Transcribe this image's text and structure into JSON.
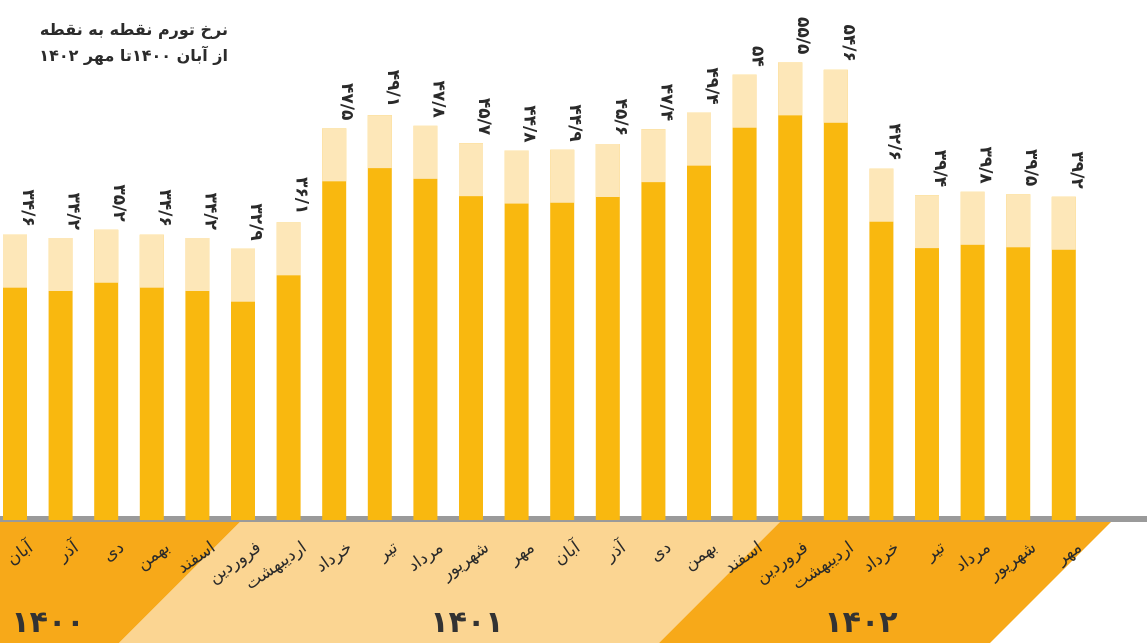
{
  "title_line1": "نرخ تورم نقطه به نقطه",
  "title_line2": "از آبان ۱۴۰۰تا مهر ۱۴۰۲",
  "colors": {
    "bar_dark": "#f9b80f",
    "bar_light": "#fde7b8",
    "band_1400": "#f7a919",
    "band_1401": "#fbd592",
    "band_1402": "#f7a919",
    "rule": "#9a9a9a"
  },
  "chart_data": {
    "type": "bar",
    "categories": [
      "آبان",
      "آذر",
      "دی",
      "بهمن",
      "اسفند",
      "فروردین",
      "اردیبهشت",
      "خرداد",
      "تیر",
      "مرداد",
      "شهریور",
      "مهر",
      "آبان",
      "آذر",
      "دی",
      "بهمن",
      "اسفند",
      "فروردین",
      "اردیبهشت",
      "خرداد",
      "تیر",
      "مرداد",
      "شهریور",
      "مهر"
    ],
    "values": [
      34.6,
      34.2,
      35.2,
      34.6,
      34.2,
      32.9,
      36.1,
      47.5,
      49.1,
      47.8,
      45.7,
      44.8,
      44.9,
      45.6,
      47.4,
      49.4,
      54,
      55.5,
      54.6,
      42.6,
      39.4,
      39.8,
      39.5,
      39.2
    ],
    "value_labels": [
      "۳۴/۶",
      "۳۴/۲",
      "۳۵/۲",
      "۳۴/۶",
      "۳۴/۲",
      "۳۲/۹",
      "۳۶/۱",
      "۴۷/۵",
      "۴۹/۱",
      "۴۷/۸",
      "۴۵/۷",
      "۴۴/۸",
      "۴۴/۹",
      "۴۵/۶",
      "۴۷/۴",
      "۴۹/۴",
      "۵۴",
      "۵۵/۵",
      "۵۴/۶",
      "۴۲/۶",
      "۳۹/۴",
      "۳۹/۸",
      "۳۹/۵",
      "۳۹/۲"
    ],
    "years": [
      {
        "label": "۱۴۰۰",
        "from": 0,
        "to": 4
      },
      {
        "label": "۱۴۰۱",
        "from": 5,
        "to": 16
      },
      {
        "label": "۱۴۰۲",
        "from": 17,
        "to": 23
      }
    ],
    "ylim": [
      0,
      57
    ]
  }
}
